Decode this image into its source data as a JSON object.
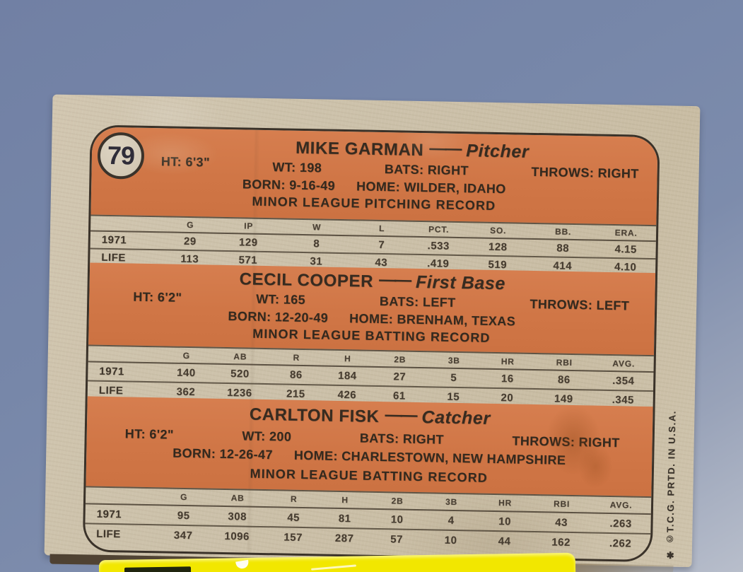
{
  "scene": {
    "background_color": "#7787a9",
    "card_color": "#ccc1aa",
    "band_color": "#d07646",
    "ink_color": "#3a3229",
    "yellow_object_color": "#f2e700"
  },
  "card": {
    "number": "79",
    "side_text": "✱ ©T.C.G. PRTD. IN U.S.A.",
    "players": [
      {
        "name": "MIKE GARMAN",
        "dash": "——",
        "position": "Pitcher",
        "ht": "HT: 6'3\"",
        "wt": "WT: 198",
        "bats": "BATS: RIGHT",
        "throws": "THROWS: RIGHT",
        "born": "BORN: 9-16-49",
        "home": "HOME: WILDER, IDAHO",
        "record_title": "MINOR LEAGUE PITCHING RECORD",
        "table": {
          "headers": [
            "G",
            "IP",
            "W",
            "L",
            "PCT.",
            "SO.",
            "BB.",
            "ERA."
          ],
          "rows": [
            {
              "label": "1971",
              "values": [
                "29",
                "129",
                "8",
                "7",
                ".533",
                "128",
                "88",
                "4.15"
              ]
            },
            {
              "label": "LIFE",
              "values": [
                "113",
                "571",
                "31",
                "43",
                ".419",
                "519",
                "414",
                "4.10"
              ]
            }
          ]
        }
      },
      {
        "name": "CECIL COOPER",
        "dash": "——",
        "position": "First Base",
        "ht": "HT: 6'2\"",
        "wt": "WT: 165",
        "bats": "BATS: LEFT",
        "throws": "THROWS: LEFT",
        "born": "BORN: 12-20-49",
        "home": "HOME: BRENHAM, TEXAS",
        "record_title": "MINOR LEAGUE BATTING RECORD",
        "table": {
          "headers": [
            "G",
            "AB",
            "R",
            "H",
            "2B",
            "3B",
            "HR",
            "RBI",
            "AVG."
          ],
          "rows": [
            {
              "label": "1971",
              "values": [
                "140",
                "520",
                "86",
                "184",
                "27",
                "5",
                "16",
                "86",
                ".354"
              ]
            },
            {
              "label": "LIFE",
              "values": [
                "362",
                "1236",
                "215",
                "426",
                "61",
                "15",
                "20",
                "149",
                ".345"
              ]
            }
          ]
        }
      },
      {
        "name": "CARLTON FISK",
        "dash": "——",
        "position": "Catcher",
        "ht": "HT: 6'2\"",
        "wt": "WT: 200",
        "bats": "BATS: RIGHT",
        "throws": "THROWS: RIGHT",
        "born": "BORN: 12-26-47",
        "home": "HOME: CHARLESTOWN, NEW HAMPSHIRE",
        "record_title": "MINOR LEAGUE BATTING RECORD",
        "table": {
          "headers": [
            "G",
            "AB",
            "R",
            "H",
            "2B",
            "3B",
            "HR",
            "RBI",
            "AVG."
          ],
          "rows": [
            {
              "label": "1971",
              "values": [
                "95",
                "308",
                "45",
                "81",
                "10",
                "4",
                "10",
                "43",
                ".263"
              ]
            },
            {
              "label": "LIFE",
              "values": [
                "347",
                "1096",
                "157",
                "287",
                "57",
                "10",
                "44",
                "162",
                ".262"
              ]
            }
          ]
        }
      }
    ]
  }
}
